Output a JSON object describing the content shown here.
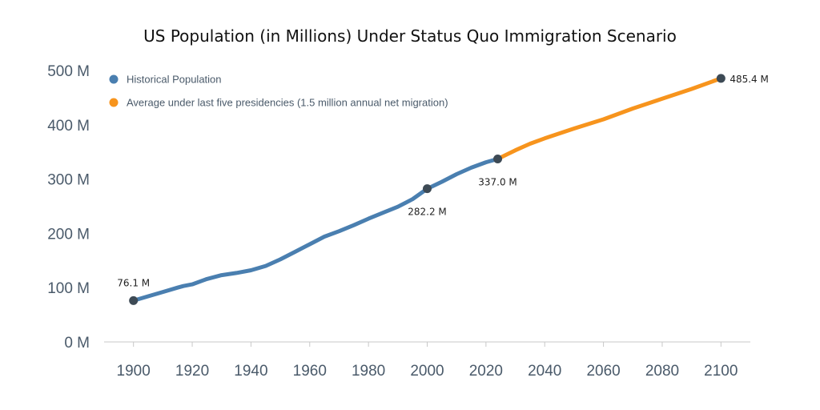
{
  "chart_data": {
    "type": "line",
    "title": "US Population (in Millions) Under Status Quo Immigration Scenario",
    "xlabel": "",
    "ylabel": "",
    "xlim": [
      1890,
      2110
    ],
    "ylim": [
      0,
      500
    ],
    "x_ticks": [
      "1900",
      "1920",
      "1940",
      "1960",
      "1980",
      "2000",
      "2020",
      "2040",
      "2060",
      "2080",
      "2100"
    ],
    "y_ticks": [
      "0 M",
      "100 M",
      "200 M",
      "300 M",
      "400 M",
      "500 M"
    ],
    "grid": false,
    "legend_position": "top-left",
    "series": [
      {
        "name": "Historical Population",
        "color": "#4a7fb0",
        "x": [
          1900,
          1905,
          1910,
          1915,
          1917,
          1920,
          1925,
          1930,
          1935,
          1940,
          1945,
          1950,
          1955,
          1960,
          1965,
          1970,
          1975,
          1980,
          1985,
          1990,
          1995,
          2000,
          2005,
          2010,
          2015,
          2020,
          2024
        ],
        "y": [
          76.1,
          84,
          92,
          100,
          103,
          106,
          116,
          123,
          127,
          132,
          140,
          152,
          166,
          180,
          194,
          204,
          215,
          227,
          238,
          249,
          263,
          282.2,
          295,
          309,
          321,
          331,
          337.0
        ]
      },
      {
        "name": "Average under last five presidencies (1.5 million annual net migration)",
        "color": "#f7941d",
        "x": [
          2024,
          2030,
          2035,
          2040,
          2050,
          2060,
          2070,
          2080,
          2090,
          2100
        ],
        "y": [
          337.0,
          353,
          365,
          375,
          393,
          410,
          430,
          448,
          466,
          485.4
        ]
      }
    ],
    "annotations": [
      {
        "x": 1900,
        "y": 76.1,
        "label": "76.1 M"
      },
      {
        "x": 2000,
        "y": 282.2,
        "label": "282.2 M"
      },
      {
        "x": 2024,
        "y": 337.0,
        "label": "337.0 M"
      },
      {
        "x": 2100,
        "y": 485.4,
        "label": "485.4 M"
      }
    ],
    "marker_color": "#3d4a55"
  }
}
